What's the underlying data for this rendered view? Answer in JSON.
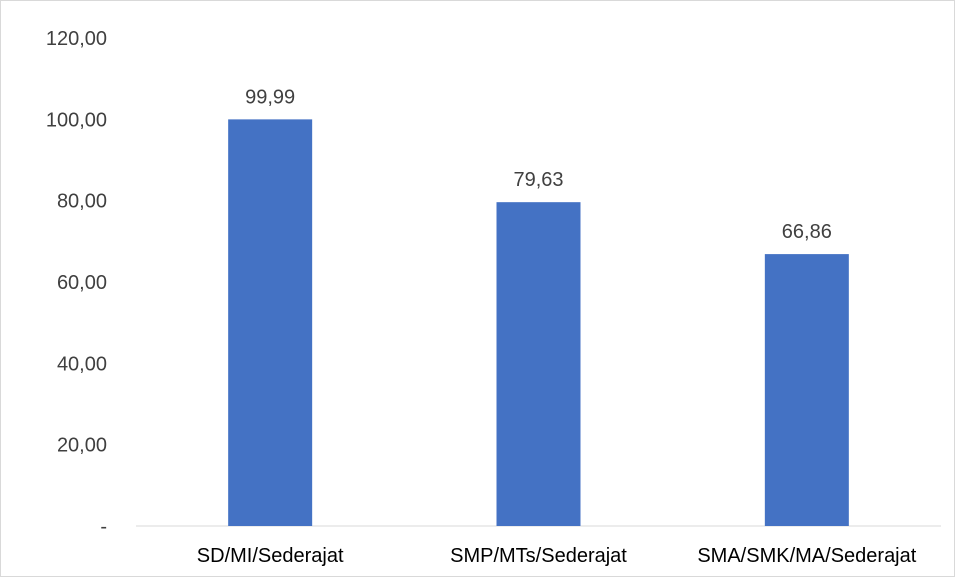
{
  "chart_data": {
    "type": "bar",
    "categories": [
      "SD/MI/Sederajat",
      "SMP/MTs/Sederajat",
      "SMA/SMK/MA/Sederajat"
    ],
    "values": [
      99.99,
      79.63,
      66.86
    ],
    "value_labels": [
      "99,99",
      "79,63",
      "66,86"
    ],
    "ylim": [
      0,
      120
    ],
    "yticks": [
      0,
      20,
      40,
      60,
      80,
      100,
      120
    ],
    "ytick_labels": [
      "-",
      "20,00",
      "40,00",
      "60,00",
      "80,00",
      "100,00",
      "120,00"
    ],
    "grid": false,
    "legend": "none",
    "bar_color": "#4472c4",
    "title": "",
    "xlabel": "",
    "ylabel": ""
  }
}
